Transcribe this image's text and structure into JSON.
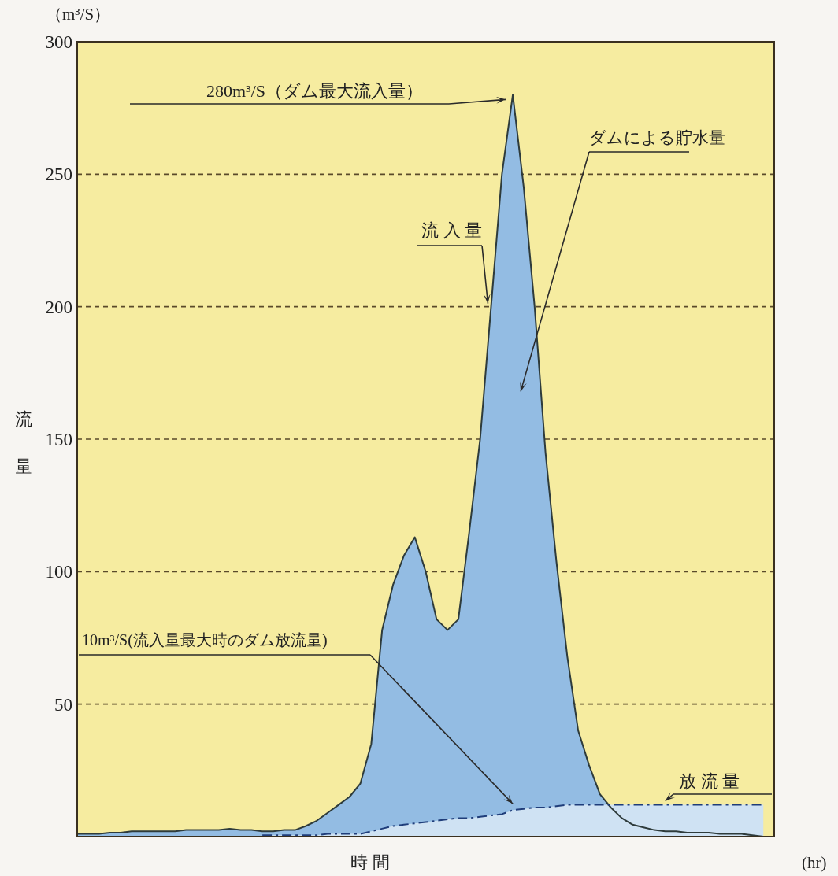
{
  "chart_data": {
    "type": "area",
    "xlabel": "時 間",
    "ylabel": "流量",
    "annotations": [
      "280m³/S（ダム最大流入量）",
      "ダムによる貯水量",
      "10m³/S(流入量最大時のダム放流量)",
      "（m³/S）",
      "(hr)"
    ],
    "categories": [
      null,
      null,
      null,
      null,
      null,
      null,
      null,
      null,
      null,
      null,
      null,
      null,
      null,
      null,
      null,
      null,
      null,
      null,
      null,
      null,
      null,
      null,
      null,
      null,
      null,
      null,
      null,
      null,
      null,
      null,
      null,
      null,
      null,
      null,
      null,
      null,
      null,
      null,
      null,
      null,
      null,
      null,
      null,
      null,
      null,
      null,
      null,
      null,
      null,
      null,
      null,
      null,
      null,
      null,
      null,
      null,
      null,
      null,
      null,
      null,
      null,
      null,
      null,
      null,
      null
    ],
    "series": [
      {
        "name": "流 入 量",
        "color": "#93bce3",
        "line_style": "solid",
        "values": [
          1,
          1,
          1,
          1.5,
          1.5,
          2,
          2,
          2,
          2,
          2,
          2.5,
          2.5,
          2.5,
          2.5,
          3,
          2.5,
          2.5,
          2,
          2,
          2.5,
          2.5,
          4,
          6,
          9,
          12,
          15,
          20,
          35,
          78,
          95,
          106,
          113,
          100,
          82,
          78,
          82,
          115,
          150,
          200,
          250,
          280,
          245,
          200,
          145,
          104,
          68,
          40,
          27,
          16,
          11,
          7,
          4.5,
          3.5,
          2.5,
          2,
          2,
          1.5,
          1.5,
          1.5,
          1,
          1,
          1,
          0.5,
          0,
          null
        ]
      },
      {
        "name": "放 流 量",
        "color": "#cfe2f3",
        "line_style": "dashed",
        "values": [
          null,
          null,
          null,
          null,
          null,
          null,
          null,
          null,
          null,
          null,
          null,
          null,
          null,
          null,
          null,
          null,
          null,
          0.5,
          0.5,
          0.5,
          0.5,
          0.5,
          0.5,
          1,
          1,
          1,
          1,
          2,
          3,
          4,
          4.5,
          5,
          5.5,
          6,
          6.5,
          7,
          7,
          7.5,
          8,
          8.5,
          10,
          10.5,
          11,
          11,
          11.5,
          12,
          12,
          12,
          12,
          12,
          12,
          12,
          12,
          12,
          12,
          12,
          12,
          12,
          12,
          12,
          12,
          12,
          12,
          12,
          null
        ]
      }
    ],
    "ylim": [
      0,
      300
    ],
    "yticks": [
      50,
      100,
      150,
      200,
      250,
      300
    ],
    "grid": "y",
    "marker": "none"
  }
}
